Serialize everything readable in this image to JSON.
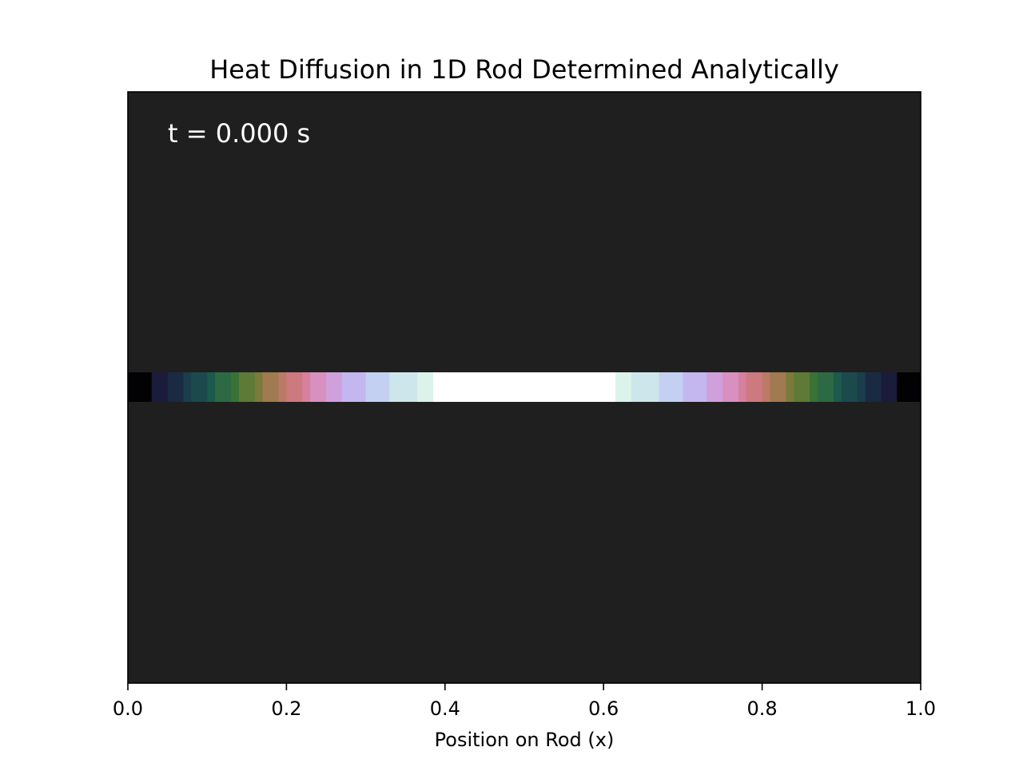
{
  "chart_data": {
    "type": "heatmap",
    "title": "Heat Diffusion in 1D Rod Determined Analytically",
    "xlabel": "Position on Rod (x)",
    "ylabel": "",
    "annotation": "t = 0.000 s",
    "xlim": [
      0.0,
      1.0
    ],
    "x_ticks": [
      0.0,
      0.2,
      0.4,
      0.6,
      0.8,
      1.0
    ],
    "x_tick_labels": [
      "0.0",
      "0.2",
      "0.4",
      "0.6",
      "0.8",
      "1.0"
    ],
    "y_ticks_visible": false,
    "grid": false,
    "colormap": "cubehelix",
    "background_color": "#1f1f1f",
    "cells": [
      {
        "x0": 0.0,
        "x1": 0.03,
        "color": "#020204"
      },
      {
        "x0": 0.03,
        "x1": 0.05,
        "color": "#1b1b3b"
      },
      {
        "x0": 0.05,
        "x1": 0.07,
        "color": "#1b2a43"
      },
      {
        "x0": 0.07,
        "x1": 0.08,
        "color": "#1b3e4d"
      },
      {
        "x0": 0.08,
        "x1": 0.1,
        "color": "#1c4a4c"
      },
      {
        "x0": 0.1,
        "x1": 0.11,
        "color": "#1c5a4b"
      },
      {
        "x0": 0.11,
        "x1": 0.13,
        "color": "#2d6a44"
      },
      {
        "x0": 0.13,
        "x1": 0.14,
        "color": "#3a7236"
      },
      {
        "x0": 0.14,
        "x1": 0.16,
        "color": "#5d7a36"
      },
      {
        "x0": 0.16,
        "x1": 0.17,
        "color": "#7a7a3b"
      },
      {
        "x0": 0.17,
        "x1": 0.19,
        "color": "#a07a50"
      },
      {
        "x0": 0.19,
        "x1": 0.2,
        "color": "#bb7a66"
      },
      {
        "x0": 0.2,
        "x1": 0.22,
        "color": "#cc7a80"
      },
      {
        "x0": 0.22,
        "x1": 0.23,
        "color": "#d680a0"
      },
      {
        "x0": 0.23,
        "x1": 0.25,
        "color": "#d890c0"
      },
      {
        "x0": 0.25,
        "x1": 0.27,
        "color": "#cfa0dc"
      },
      {
        "x0": 0.27,
        "x1": 0.3,
        "color": "#c4b6ef"
      },
      {
        "x0": 0.3,
        "x1": 0.33,
        "color": "#c4d0f2"
      },
      {
        "x0": 0.33,
        "x1": 0.365,
        "color": "#cde6ec"
      },
      {
        "x0": 0.365,
        "x1": 0.385,
        "color": "#dcf3ec"
      },
      {
        "x0": 0.385,
        "x1": 0.615,
        "color": "#ffffff"
      },
      {
        "x0": 0.615,
        "x1": 0.635,
        "color": "#dcf3ec"
      },
      {
        "x0": 0.635,
        "x1": 0.67,
        "color": "#cde6ec"
      },
      {
        "x0": 0.67,
        "x1": 0.7,
        "color": "#c4d0f2"
      },
      {
        "x0": 0.7,
        "x1": 0.73,
        "color": "#c4b6ef"
      },
      {
        "x0": 0.73,
        "x1": 0.75,
        "color": "#cfa0dc"
      },
      {
        "x0": 0.75,
        "x1": 0.77,
        "color": "#d890c0"
      },
      {
        "x0": 0.77,
        "x1": 0.78,
        "color": "#d680a0"
      },
      {
        "x0": 0.78,
        "x1": 0.8,
        "color": "#cc7a80"
      },
      {
        "x0": 0.8,
        "x1": 0.81,
        "color": "#bb7a66"
      },
      {
        "x0": 0.81,
        "x1": 0.83,
        "color": "#a07a50"
      },
      {
        "x0": 0.83,
        "x1": 0.84,
        "color": "#7a7a3b"
      },
      {
        "x0": 0.84,
        "x1": 0.86,
        "color": "#5d7a36"
      },
      {
        "x0": 0.86,
        "x1": 0.87,
        "color": "#3a7236"
      },
      {
        "x0": 0.87,
        "x1": 0.89,
        "color": "#2d6a44"
      },
      {
        "x0": 0.89,
        "x1": 0.9,
        "color": "#1c5a4b"
      },
      {
        "x0": 0.9,
        "x1": 0.92,
        "color": "#1c4a4c"
      },
      {
        "x0": 0.92,
        "x1": 0.93,
        "color": "#1b3e4d"
      },
      {
        "x0": 0.93,
        "x1": 0.95,
        "color": "#1b2a43"
      },
      {
        "x0": 0.95,
        "x1": 0.97,
        "color": "#1b1b3b"
      },
      {
        "x0": 0.97,
        "x1": 1.0,
        "color": "#020204"
      }
    ]
  }
}
